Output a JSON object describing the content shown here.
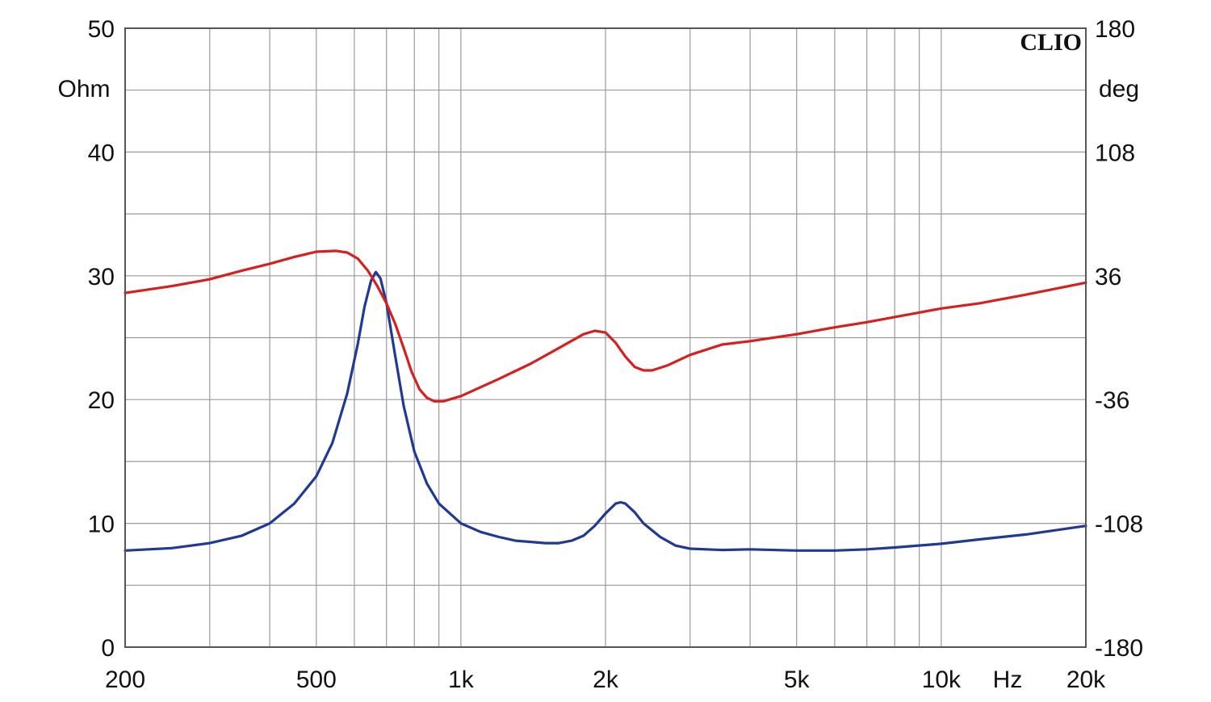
{
  "chart_data": {
    "type": "line",
    "brand_label": "CLIO",
    "x_scale": "log",
    "x_unit_label": "Hz",
    "xlim": [
      200,
      20000
    ],
    "x_ticks": [
      {
        "value": 200,
        "label": "200"
      },
      {
        "value": 500,
        "label": "500"
      },
      {
        "value": 1000,
        "label": "1k"
      },
      {
        "value": 2000,
        "label": "2k"
      },
      {
        "value": 5000,
        "label": "5k"
      },
      {
        "value": 10000,
        "label": "10k"
      },
      {
        "value": 20000,
        "label": "20k"
      }
    ],
    "y_left": {
      "unit_label": "Ohm",
      "lim": [
        0,
        50
      ],
      "ticks": [
        {
          "value": 0,
          "label": "0"
        },
        {
          "value": 10,
          "label": "10"
        },
        {
          "value": 20,
          "label": "20"
        },
        {
          "value": 30,
          "label": "30"
        },
        {
          "value": 40,
          "label": "40"
        },
        {
          "value": 50,
          "label": "50"
        }
      ]
    },
    "y_right": {
      "unit_label": "deg",
      "lim": [
        -180,
        180
      ],
      "ticks": [
        {
          "value": -180,
          "label": "-180"
        },
        {
          "value": -108,
          "label": "-108"
        },
        {
          "value": -36,
          "label": "-36"
        },
        {
          "value": 36,
          "label": "36"
        },
        {
          "value": 108,
          "label": "108"
        },
        {
          "value": 180,
          "label": "180"
        }
      ]
    },
    "grid": true,
    "series": [
      {
        "axis": "left",
        "color": "#1f3a93",
        "points": [
          [
            200,
            7.8
          ],
          [
            250,
            8.0
          ],
          [
            300,
            8.4
          ],
          [
            350,
            9.0
          ],
          [
            400,
            10.0
          ],
          [
            450,
            11.6
          ],
          [
            500,
            13.8
          ],
          [
            540,
            16.5
          ],
          [
            580,
            20.5
          ],
          [
            610,
            24.5
          ],
          [
            630,
            27.5
          ],
          [
            650,
            29.6
          ],
          [
            665,
            30.3
          ],
          [
            680,
            29.8
          ],
          [
            700,
            27.8
          ],
          [
            730,
            23.5
          ],
          [
            760,
            19.5
          ],
          [
            800,
            15.8
          ],
          [
            850,
            13.2
          ],
          [
            900,
            11.6
          ],
          [
            1000,
            10.0
          ],
          [
            1100,
            9.3
          ],
          [
            1200,
            8.9
          ],
          [
            1300,
            8.6
          ],
          [
            1400,
            8.5
          ],
          [
            1500,
            8.4
          ],
          [
            1600,
            8.4
          ],
          [
            1700,
            8.6
          ],
          [
            1800,
            9.0
          ],
          [
            1900,
            9.8
          ],
          [
            2000,
            10.8
          ],
          [
            2100,
            11.6
          ],
          [
            2150,
            11.7
          ],
          [
            2200,
            11.6
          ],
          [
            2300,
            10.9
          ],
          [
            2400,
            10.0
          ],
          [
            2600,
            8.9
          ],
          [
            2800,
            8.2
          ],
          [
            3000,
            7.95
          ],
          [
            3500,
            7.85
          ],
          [
            4000,
            7.9
          ],
          [
            5000,
            7.8
          ],
          [
            6000,
            7.8
          ],
          [
            7000,
            7.9
          ],
          [
            8000,
            8.05
          ],
          [
            10000,
            8.35
          ],
          [
            12000,
            8.7
          ],
          [
            15000,
            9.1
          ],
          [
            20000,
            9.8
          ]
        ]
      },
      {
        "axis": "right",
        "color": "#d62020",
        "points": [
          [
            200,
            26
          ],
          [
            250,
            30
          ],
          [
            300,
            34
          ],
          [
            350,
            39
          ],
          [
            400,
            43
          ],
          [
            450,
            47
          ],
          [
            500,
            50
          ],
          [
            550,
            50.5
          ],
          [
            580,
            49.5
          ],
          [
            610,
            46
          ],
          [
            640,
            39
          ],
          [
            670,
            30
          ],
          [
            700,
            20
          ],
          [
            730,
            8
          ],
          [
            760,
            -6
          ],
          [
            790,
            -20
          ],
          [
            820,
            -30
          ],
          [
            850,
            -35
          ],
          [
            880,
            -37
          ],
          [
            920,
            -37
          ],
          [
            1000,
            -34
          ],
          [
            1200,
            -24
          ],
          [
            1400,
            -15
          ],
          [
            1600,
            -6
          ],
          [
            1800,
            2
          ],
          [
            1900,
            4
          ],
          [
            2000,
            3
          ],
          [
            2100,
            -3
          ],
          [
            2200,
            -11
          ],
          [
            2300,
            -17
          ],
          [
            2400,
            -19
          ],
          [
            2500,
            -19
          ],
          [
            2700,
            -16
          ],
          [
            3000,
            -10
          ],
          [
            3500,
            -4
          ],
          [
            4000,
            -2
          ],
          [
            5000,
            2
          ],
          [
            6000,
            6
          ],
          [
            7000,
            9
          ],
          [
            8000,
            12
          ],
          [
            10000,
            17
          ],
          [
            12000,
            20
          ],
          [
            15000,
            25
          ],
          [
            20000,
            32
          ]
        ]
      }
    ]
  }
}
